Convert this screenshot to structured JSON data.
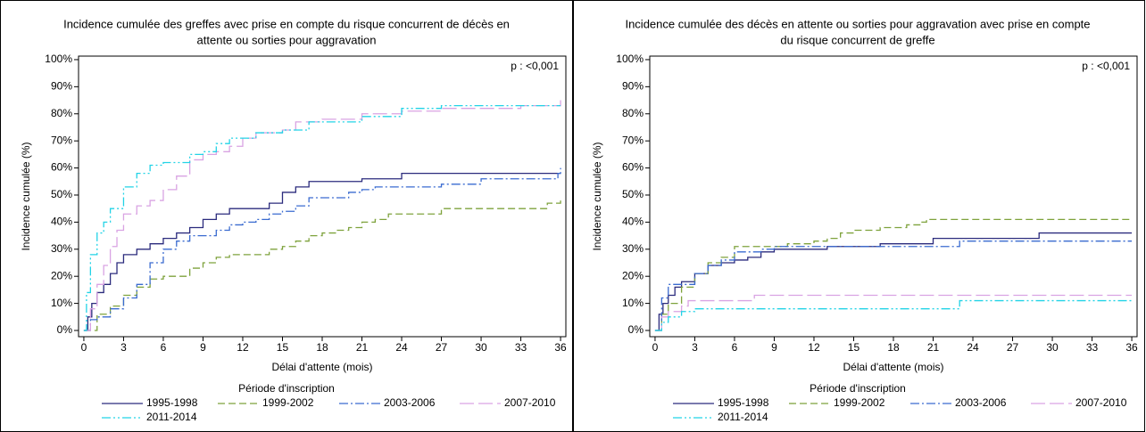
{
  "chart_data": [
    {
      "type": "line",
      "step": true,
      "title": [
        "Incidence cumulée des greffes avec prise en compte du risque concurrent de décès en",
        "attente ou sorties pour aggravation"
      ],
      "xlabel": "Délai d'attente (mois)",
      "ylabel": "Incidence cumulée (%)",
      "annotation": "p : <0,001",
      "legend_title": "Période d'inscription",
      "legend": "bottom",
      "xlim": [
        -0.4,
        36.4
      ],
      "ylim": [
        -2.3,
        101.3
      ],
      "xticks": [
        0,
        3,
        6,
        9,
        12,
        15,
        18,
        21,
        24,
        27,
        30,
        33,
        36
      ],
      "yticks": [
        {
          "value": 0,
          "label": "0%"
        },
        {
          "value": 10,
          "label": "10%"
        },
        {
          "value": 20,
          "label": "20%"
        },
        {
          "value": 30,
          "label": "30%"
        },
        {
          "value": 40,
          "label": "40%"
        },
        {
          "value": 50,
          "label": "50%"
        },
        {
          "value": 60,
          "label": "60%"
        },
        {
          "value": 70,
          "label": "70%"
        },
        {
          "value": 80,
          "label": "80%"
        },
        {
          "value": 90,
          "label": "90%"
        },
        {
          "value": 100,
          "label": "100%"
        }
      ],
      "series": [
        {
          "name": "1995-1998",
          "color": "#2b2b7d",
          "dash": "solid",
          "x": [
            0,
            0.3,
            0.6,
            1,
            1.5,
            2,
            2.5,
            3,
            4,
            5,
            6,
            7,
            8,
            9,
            10,
            11,
            12,
            14,
            15,
            16,
            17,
            21,
            24,
            30,
            36
          ],
          "values": [
            0,
            5,
            10,
            14,
            17,
            21,
            25,
            28,
            30,
            32,
            34,
            36,
            38,
            41,
            43,
            45,
            45,
            47,
            51,
            53,
            55,
            56,
            58,
            58,
            58
          ]
        },
        {
          "name": "1999-2002",
          "color": "#7ea23c",
          "dash": "dashed",
          "x": [
            0,
            1,
            2,
            3,
            4,
            5,
            6,
            8,
            9,
            10,
            11,
            12,
            14,
            15,
            16,
            17,
            18,
            19,
            20,
            21,
            22,
            23,
            24,
            27,
            33,
            35,
            36
          ],
          "values": [
            0,
            6,
            9,
            13,
            16,
            19,
            20,
            23,
            25,
            27,
            28,
            28,
            30,
            31,
            33,
            35,
            36,
            37,
            38,
            40,
            41,
            43,
            43,
            45,
            45,
            47,
            48
          ]
        },
        {
          "name": "2003-2006",
          "color": "#3a6bd0",
          "dash": "dashdot",
          "x": [
            0,
            0.5,
            1,
            2,
            3,
            4,
            5,
            6,
            7,
            8,
            9,
            10,
            11,
            12,
            13,
            14,
            15,
            16,
            17,
            18,
            20,
            21,
            22,
            24,
            27,
            30,
            35.8,
            36
          ],
          "values": [
            0,
            4,
            5,
            8,
            12,
            17,
            25,
            30,
            33,
            35,
            35,
            37,
            39,
            40,
            41,
            43,
            44,
            46,
            49,
            49,
            51,
            52,
            53,
            53,
            54,
            56,
            58,
            60
          ]
        },
        {
          "name": "2007-2010",
          "color": "#d9a3e3",
          "dash": "longdash",
          "x": [
            0,
            0.5,
            1,
            1.5,
            2,
            2.5,
            3,
            4,
            5,
            6,
            7,
            8,
            9,
            10,
            11,
            12,
            13,
            15,
            16,
            18,
            21,
            24,
            27,
            33,
            36
          ],
          "values": [
            0,
            8,
            17,
            24,
            31,
            37,
            43,
            46,
            48,
            52,
            57,
            63,
            65,
            66,
            68,
            71,
            73,
            74,
            77,
            78,
            80,
            81,
            82,
            83,
            85
          ]
        },
        {
          "name": "2011-2014",
          "color": "#22d3e6",
          "dash": "dashdotdot",
          "x": [
            0,
            0.2,
            0.5,
            1,
            1.5,
            2,
            3,
            4,
            5,
            6,
            8,
            9,
            10,
            11,
            13,
            15,
            17,
            21,
            24,
            27,
            36
          ],
          "values": [
            0,
            14,
            28,
            36,
            40,
            45,
            53,
            58,
            61,
            62,
            65,
            66,
            69,
            71,
            73,
            74,
            77,
            79,
            82,
            83,
            83
          ]
        }
      ]
    },
    {
      "type": "line",
      "step": true,
      "title": [
        "Incidence cumulée des décès en attente ou sorties pour aggravation avec prise en compte",
        "du risque concurrent de greffe"
      ],
      "xlabel": "Délai d'attente (mois)",
      "ylabel": "Incidence cumulée (%)",
      "annotation": "p : <0,001",
      "legend_title": "Période d'inscription",
      "legend": "bottom",
      "xlim": [
        -0.4,
        36.4
      ],
      "ylim": [
        -2.3,
        101.3
      ],
      "xticks": [
        0,
        3,
        6,
        9,
        12,
        15,
        18,
        21,
        24,
        27,
        30,
        33,
        36
      ],
      "yticks": [
        {
          "value": 0,
          "label": "0%"
        },
        {
          "value": 10,
          "label": "10%"
        },
        {
          "value": 20,
          "label": "20%"
        },
        {
          "value": 30,
          "label": "30%"
        },
        {
          "value": 40,
          "label": "40%"
        },
        {
          "value": 50,
          "label": "50%"
        },
        {
          "value": 60,
          "label": "60%"
        },
        {
          "value": 70,
          "label": "70%"
        },
        {
          "value": 80,
          "label": "80%"
        },
        {
          "value": 90,
          "label": "90%"
        },
        {
          "value": 100,
          "label": "100%"
        }
      ],
      "series": [
        {
          "name": "1995-1998",
          "color": "#2b2b7d",
          "dash": "solid",
          "x": [
            0,
            0.3,
            0.6,
            1,
            1.5,
            2,
            3,
            4,
            5,
            6,
            7,
            8,
            9,
            12,
            13,
            15,
            17,
            21,
            24,
            29,
            36
          ],
          "values": [
            0,
            6,
            10,
            13,
            16,
            18,
            21,
            24,
            25,
            26,
            27,
            29,
            30,
            30,
            31,
            31,
            32,
            34,
            34,
            36,
            36
          ]
        },
        {
          "name": "1999-2002",
          "color": "#7ea23c",
          "dash": "dashed",
          "x": [
            0,
            0.5,
            1,
            2,
            3,
            4,
            5,
            6,
            8,
            10,
            12,
            13,
            14,
            15,
            17,
            18,
            19,
            20,
            20.5,
            36
          ],
          "values": [
            0,
            6,
            10,
            16,
            21,
            25,
            27,
            31,
            31,
            32,
            33,
            34,
            36,
            37,
            38,
            38,
            39,
            40,
            41,
            41
          ]
        },
        {
          "name": "2003-2006",
          "color": "#3a6bd0",
          "dash": "dashdot",
          "x": [
            0,
            0.5,
            1,
            2,
            3,
            4,
            5,
            6,
            8,
            9,
            15,
            18,
            23,
            30,
            36
          ],
          "values": [
            0,
            12,
            17,
            17,
            21,
            24,
            26,
            29,
            30,
            31,
            31,
            31,
            33,
            33,
            33
          ]
        },
        {
          "name": "2007-2010",
          "color": "#d9a3e3",
          "dash": "longdash",
          "x": [
            0,
            0.5,
            1,
            2,
            2.5,
            3,
            7.5,
            36
          ],
          "values": [
            0,
            5,
            7,
            9,
            11,
            11,
            13,
            13
          ]
        },
        {
          "name": "2011-2014",
          "color": "#22d3e6",
          "dash": "dashdotdot",
          "x": [
            0,
            0.5,
            1,
            2,
            3,
            23,
            36
          ],
          "values": [
            0,
            3,
            5,
            7,
            8,
            11,
            11
          ]
        }
      ]
    }
  ]
}
